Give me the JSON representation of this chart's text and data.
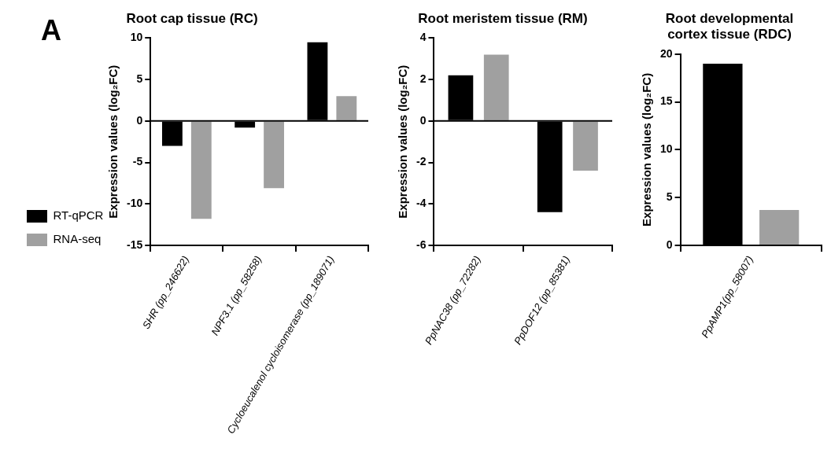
{
  "chart_data": [
    {
      "type": "bar",
      "title": "Root cap tissue (RC)",
      "ylabel": "Expression values (log₂FC)",
      "annotations": [
        "A"
      ],
      "categories": [
        "SHR (pp_246622)",
        "NPF3.1 (pp_58258)",
        "Cycloeucalenol cycloisomerase (pp_189071)"
      ],
      "series": [
        {
          "name": "RT-qPCR",
          "color": "#000000",
          "values": [
            -3,
            -0.8,
            9.5
          ]
        },
        {
          "name": "RNA-seq",
          "color": "#a0a0a0",
          "values": [
            -11.8,
            -8.1,
            3.0
          ]
        }
      ],
      "ylim": [
        -15,
        10
      ],
      "yticks": [
        -15,
        -10,
        -5,
        0,
        5,
        10
      ],
      "grid": false,
      "legend": "left",
      "ref_lines": [
        {
          "axis": "y",
          "value": 0
        }
      ]
    },
    {
      "type": "bar",
      "title": "Root meristem tissue (RM)",
      "ylabel": "Expression values (log₂FC)",
      "categories": [
        "PpNAC38 (pp_72282)",
        "PpDOF12 (pp_85381)"
      ],
      "series": [
        {
          "color": "#000000",
          "values": [
            2.2,
            -4.4
          ]
        },
        {
          "color": "#a0a0a0",
          "values": [
            3.2,
            -2.4
          ]
        }
      ],
      "ylim": [
        -6,
        4
      ],
      "yticks": [
        -6,
        -4,
        -2,
        0,
        2,
        4
      ],
      "grid": false,
      "legend": false,
      "ref_lines": [
        {
          "axis": "y",
          "value": 0
        }
      ]
    },
    {
      "type": "bar",
      "title": "Root developmental\ncortex tissue (RDC)",
      "ylabel": "Expression values (log₂FC)",
      "categories": [
        "PpAMP1(pp_58007)"
      ],
      "series": [
        {
          "color": "#000000",
          "values": [
            19
          ]
        },
        {
          "color": "#a0a0a0",
          "values": [
            3.7
          ]
        }
      ],
      "ylim": [
        0,
        20
      ],
      "yticks": [
        0,
        5,
        10,
        15,
        20
      ],
      "grid": false,
      "legend": false
    }
  ]
}
